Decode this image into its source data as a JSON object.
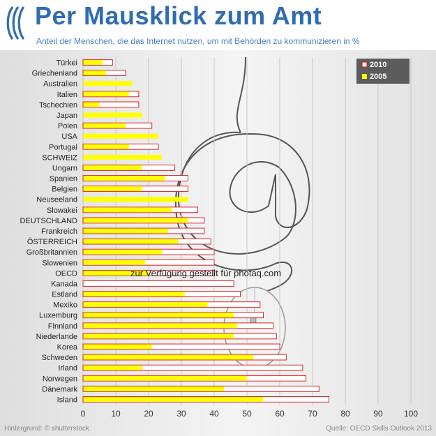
{
  "header": {
    "title": "Per Mausklick zum Amt",
    "subtitle": "Anteil der Menschen, die das Internet nutzen, um mit Behörden zu kommunizieren in %",
    "accent_color": "#2f6cb4"
  },
  "footer": {
    "credit": "Hintergrund: © shutterstock",
    "source": "Quelle: OECD Skills Outlook 2013"
  },
  "watermark": "zur Verfügung gestellt für photaq.com",
  "chart_data": {
    "type": "bar",
    "orientation": "horizontal",
    "title": "",
    "xlabel": "",
    "ylabel": "",
    "xlim": [
      0,
      100
    ],
    "xticks": [
      "0",
      "10",
      "20",
      "30",
      "40",
      "50",
      "60",
      "70",
      "80",
      "90",
      "100"
    ],
    "grid": true,
    "legend_position": "top-right",
    "categories": [
      "Türkei",
      "Griechenland",
      "Australien",
      "Italien",
      "Tschechien",
      "Japan",
      "Polen",
      "USA",
      "Portugal",
      "SCHWEIZ",
      "Ungarn",
      "Spanien",
      "Belgien",
      "Neuseeland",
      "Slowakei",
      "DEUTSCHLAND",
      "Frankreich",
      "ÖSTERREICH",
      "Großbritannien",
      "Slowenien",
      "OECD",
      "Kanada",
      "Estland",
      "Mexiko",
      "Luxemburg",
      "Finnland",
      "Niederlande",
      "Korea",
      "Schweden",
      "Irland",
      "Norwegen",
      "Dänemark",
      "Island"
    ],
    "series": [
      {
        "name": "2010",
        "color": "#d9252b",
        "style": "outline",
        "values": [
          9,
          13,
          null,
          17,
          17,
          null,
          21,
          null,
          23,
          null,
          28,
          32,
          32,
          null,
          35,
          37,
          37,
          39,
          40,
          40,
          40,
          46,
          48,
          54,
          55,
          58,
          59,
          60,
          62,
          67,
          68,
          72,
          75
        ]
      },
      {
        "name": "2005",
        "color": "#ffff00",
        "style": "fill",
        "values": [
          6,
          7,
          15,
          14,
          5,
          18,
          13,
          23,
          14,
          24,
          18,
          25,
          18,
          32,
          27,
          32,
          26,
          29,
          24,
          19,
          20,
          null,
          31,
          38,
          46,
          47,
          46,
          21,
          52,
          18,
          50,
          43,
          55
        ]
      }
    ]
  }
}
